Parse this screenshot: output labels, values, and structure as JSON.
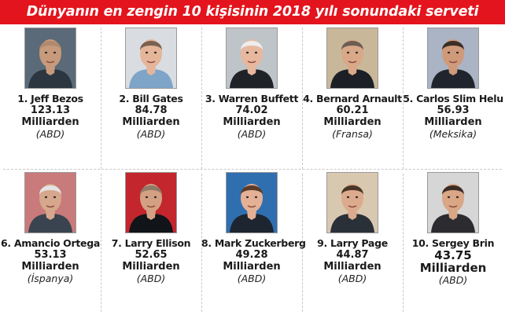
{
  "title": "Dünyanın en zengin 10 kişisinin 2018 yılı sonundaki serveti",
  "people": [
    {
      "rank_name": "1. Jeff Bezos",
      "value": "123.13",
      "unit": "Milliarden",
      "country": "(ABD)",
      "bg": "#5a6a78",
      "skin": "#c79a7c",
      "hair": "#b08a6e",
      "shirt": "#2c3640"
    },
    {
      "rank_name": "2. Bill Gates",
      "value": "84.78",
      "unit": "Milliarden",
      "country": "(ABD)",
      "bg": "#d9dde2",
      "skin": "#e5b59a",
      "hair": "#7a6252",
      "shirt": "#7ea4c8"
    },
    {
      "rank_name": "3. Warren Buffett",
      "value": "74.02",
      "unit": "Milliarden",
      "country": "(ABD)",
      "bg": "#bfc4c8",
      "skin": "#e7b89e",
      "hair": "#ededed",
      "shirt": "#1f2328"
    },
    {
      "rank_name": "4. Bernard Arnault",
      "value": "60.21",
      "unit": "Milliarden",
      "country": "(Fransa)",
      "bg": "#c9b79a",
      "skin": "#d9a888",
      "hair": "#6d5d54",
      "shirt": "#1c2026"
    },
    {
      "rank_name": "5. Carlos Slim Helu",
      "value": "56.93",
      "unit": "Milliarden",
      "country": "(Meksika)",
      "bg": "#aab4c4",
      "skin": "#cf9a7a",
      "hair": "#3a2e28",
      "shirt": "#20242c"
    },
    {
      "rank_name": "6. Amancio Ortega",
      "value": "53.13",
      "unit": "Milliarden",
      "country": "(İspanya)",
      "bg": "#c97a7a",
      "skin": "#d6a78c",
      "hair": "#e4e4e4",
      "shirt": "#3a4450"
    },
    {
      "rank_name": "7. Larry Ellison",
      "value": "52.65",
      "unit": "Milliarden",
      "country": "(ABD)",
      "bg": "#c3262c",
      "skin": "#d4a084",
      "hair": "#8e7a68",
      "shirt": "#111418"
    },
    {
      "rank_name": "8. Mark Zuckerberg",
      "value": "49.28",
      "unit": "Milliarden",
      "country": "(ABD)",
      "bg": "#2f6fb0",
      "skin": "#e4b196",
      "hair": "#5b3b28",
      "shirt": "#1d2530"
    },
    {
      "rank_name": "9. Larry Page",
      "value": "44.87",
      "unit": "Milliarden",
      "country": "(ABD)",
      "bg": "#d8c8b0",
      "skin": "#dcab8e",
      "hair": "#4a3628",
      "shirt": "#2a3038"
    },
    {
      "rank_name": "10. Sergey Brin",
      "value": "43.75",
      "unit": "Milliarden",
      "country": "(ABD)",
      "bg": "#d6d6d6",
      "skin": "#d9a686",
      "hair": "#3b2c24",
      "shirt": "#2c2c30"
    }
  ]
}
